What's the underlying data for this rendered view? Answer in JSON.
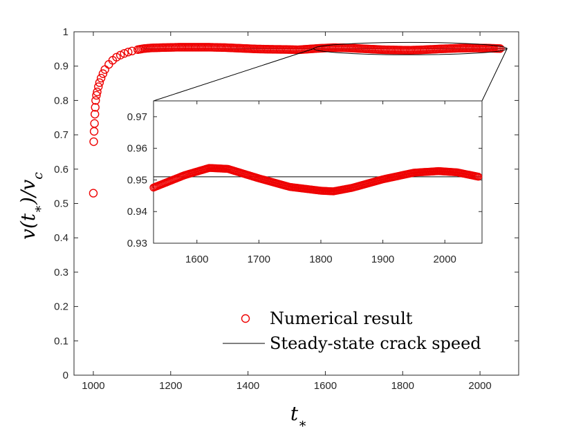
{
  "chart_data": {
    "type": "scatter",
    "xlabel": "t*",
    "ylabel": "v(t*)/vc",
    "xlim": [
      950,
      2100
    ],
    "ylim": [
      0,
      1
    ],
    "x_ticks": [
      "1000",
      "1200",
      "1400",
      "1600",
      "1800",
      "2000"
    ],
    "y_ticks": [
      "0",
      "0.1",
      "0.2",
      "0.3",
      "0.4",
      "0.5",
      "0.6",
      "0.7",
      "0.8",
      "0.9",
      "1"
    ],
    "steady_state_speed": 0.951,
    "series": [
      {
        "name": "Numerical result",
        "marker": "open-circle",
        "color": "#ee0000",
        "points": [
          [
            1000,
            0.53
          ],
          [
            1001,
            0.68
          ],
          [
            1002,
            0.71
          ],
          [
            1003,
            0.733
          ],
          [
            1004,
            0.76
          ],
          [
            1005,
            0.78
          ],
          [
            1006,
            0.8
          ],
          [
            1008,
            0.815
          ],
          [
            1010,
            0.825
          ],
          [
            1013,
            0.84
          ],
          [
            1016,
            0.852
          ],
          [
            1020,
            0.865
          ],
          [
            1025,
            0.878
          ],
          [
            1030,
            0.89
          ],
          [
            1040,
            0.905
          ],
          [
            1050,
            0.917
          ],
          [
            1060,
            0.926
          ],
          [
            1070,
            0.932
          ],
          [
            1080,
            0.937
          ],
          [
            1090,
            0.941
          ],
          [
            1100,
            0.944
          ],
          [
            1115,
            0.948
          ],
          [
            1130,
            0.951
          ],
          [
            1150,
            0.953
          ],
          [
            1180,
            0.954
          ],
          [
            1220,
            0.955
          ],
          [
            1260,
            0.955
          ],
          [
            1300,
            0.955
          ],
          [
            1340,
            0.954
          ],
          [
            1380,
            0.952
          ],
          [
            1420,
            0.95
          ],
          [
            1460,
            0.949
          ],
          [
            1500,
            0.9485
          ],
          [
            1530,
            0.9476
          ],
          [
            1580,
            0.9515
          ],
          [
            1620,
            0.9538
          ],
          [
            1650,
            0.9535
          ],
          [
            1700,
            0.9505
          ],
          [
            1750,
            0.9478
          ],
          [
            1800,
            0.9466
          ],
          [
            1820,
            0.9464
          ],
          [
            1850,
            0.9475
          ],
          [
            1900,
            0.9502
          ],
          [
            1950,
            0.9523
          ],
          [
            1990,
            0.9528
          ],
          [
            2020,
            0.9524
          ],
          [
            2055,
            0.951
          ]
        ]
      },
      {
        "name": "Steady-state crack speed",
        "type": "line",
        "color": "#000000",
        "x": [
          1130,
          2070
        ],
        "y": [
          0.951,
          0.951
        ]
      }
    ],
    "inset": {
      "xlim": [
        1530,
        2060
      ],
      "ylim": [
        0.93,
        0.975
      ],
      "x_ticks": [
        "1600",
        "1700",
        "1800",
        "1900",
        "2000"
      ],
      "y_ticks": [
        "0.93",
        "0.94",
        "0.95",
        "0.96",
        "0.97"
      ],
      "zoom_ellipse_center": [
        1820,
        0.951
      ],
      "zoom_ellipse_x_half_range": 250,
      "zoom_ellipse_y_half_range": 0.018
    },
    "legend": {
      "position": "lower-right",
      "entries": [
        "Numerical result",
        "Steady-state crack speed"
      ]
    }
  }
}
